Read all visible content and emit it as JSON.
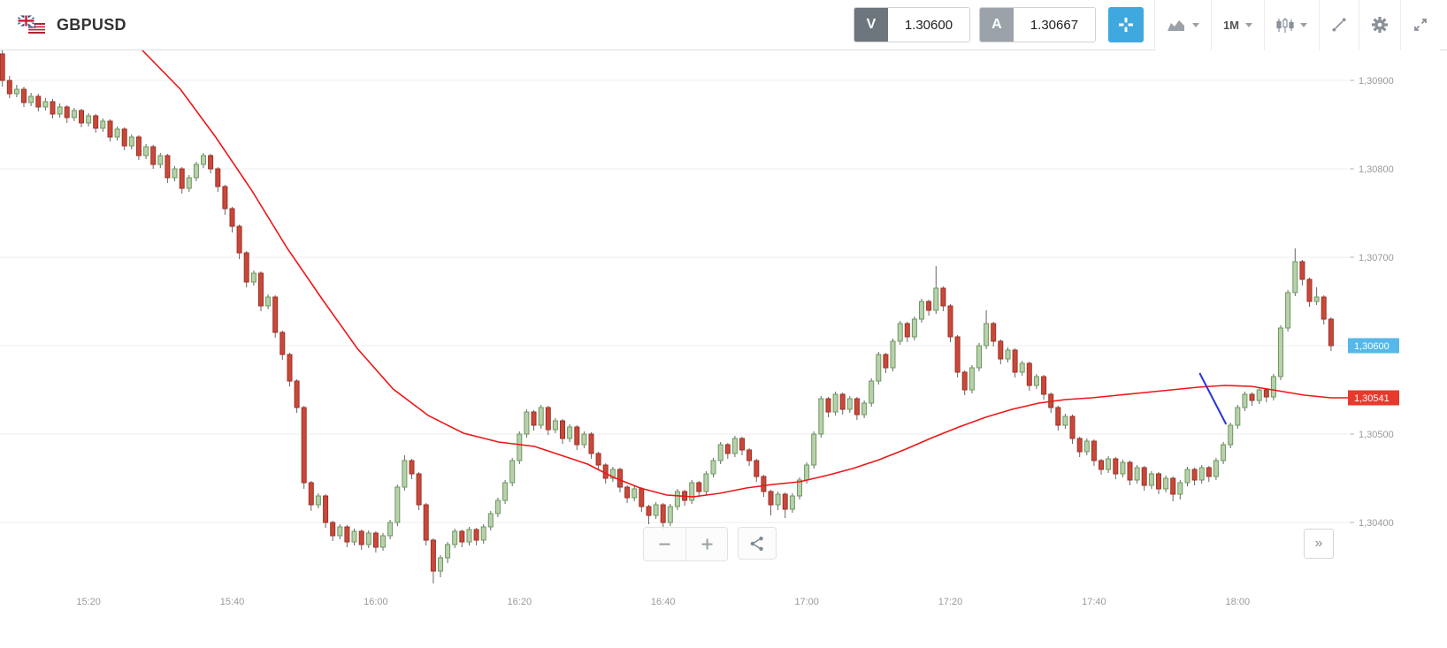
{
  "header": {
    "symbol": "GBPUSD",
    "sell": {
      "label": "V",
      "value": "1.30600"
    },
    "buy": {
      "label": "A",
      "value": "1.30667"
    },
    "timeframe": "1M"
  },
  "controls": {
    "collapse_panel": "»"
  },
  "colors": {
    "accent_blue": "#3fa9df",
    "sell_box": "#6d757d",
    "buy_box": "#9ba2aa",
    "bull_fill": "#b9d0ae",
    "bull_stroke": "#6a9a5b",
    "bear_fill": "#c9483a",
    "bear_stroke": "#9c3227",
    "wick": "#666666",
    "ma_line": "#ef1515",
    "trend_line": "#2b35d8",
    "grid": "#ececec",
    "axis_text": "#999999",
    "tag_current_bg": "#56b8e8",
    "tag_ma_bg": "#e8392d"
  },
  "chart_data": {
    "type": "candlestick",
    "symbol": "GBPUSD",
    "interval": "1M",
    "start_time": "15:08",
    "minutes_per_candle": 1,
    "price_base": 1.3,
    "price_unit": 1e-05,
    "visible_price_range": [
      1.3033,
      1.3094
    ],
    "grid_prices": [
      900,
      800,
      700,
      600,
      500,
      400
    ],
    "axis_labels": [
      {
        "price": 900,
        "label": "1,30900"
      },
      {
        "price": 800,
        "label": "1,30800"
      },
      {
        "price": 700,
        "label": "1,30700"
      },
      {
        "price": 600,
        "label": "1,30600"
      },
      {
        "price": 500,
        "label": "1,30500"
      },
      {
        "price": 400,
        "label": "1,30400"
      }
    ],
    "time_ticks": [
      {
        "index": 12,
        "label": "15:20"
      },
      {
        "index": 32,
        "label": "15:40"
      },
      {
        "index": 52,
        "label": "16:00"
      },
      {
        "index": 72,
        "label": "16:20"
      },
      {
        "index": 92,
        "label": "16:40"
      },
      {
        "index": 112,
        "label": "17:00"
      },
      {
        "index": 132,
        "label": "17:20"
      },
      {
        "index": 152,
        "label": "17:40"
      },
      {
        "index": 172,
        "label": "18:00"
      }
    ],
    "current_price_tag": {
      "price": 600,
      "label": "1,30600"
    },
    "ma_value_tag": {
      "price": 541,
      "label": "1,30541"
    },
    "ohlc": [
      [
        930,
        936,
        893,
        900
      ],
      [
        900,
        905,
        880,
        885
      ],
      [
        885,
        895,
        881,
        890
      ],
      [
        890,
        893,
        870,
        875
      ],
      [
        875,
        886,
        871,
        882
      ],
      [
        882,
        885,
        865,
        870
      ],
      [
        870,
        880,
        866,
        876
      ],
      [
        876,
        879,
        857,
        862
      ],
      [
        862,
        874,
        858,
        870
      ],
      [
        870,
        872,
        852,
        858
      ],
      [
        858,
        869,
        854,
        866
      ],
      [
        866,
        868,
        847,
        852
      ],
      [
        852,
        863,
        848,
        860
      ],
      [
        860,
        862,
        841,
        846
      ],
      [
        846,
        857,
        842,
        854
      ],
      [
        854,
        856,
        831,
        836
      ],
      [
        836,
        848,
        832,
        845
      ],
      [
        845,
        847,
        821,
        826
      ],
      [
        826,
        839,
        822,
        836
      ],
      [
        836,
        838,
        810,
        815
      ],
      [
        815,
        828,
        811,
        825
      ],
      [
        825,
        827,
        800,
        805
      ],
      [
        805,
        818,
        801,
        815
      ],
      [
        815,
        817,
        784,
        790
      ],
      [
        790,
        803,
        786,
        800
      ],
      [
        800,
        802,
        772,
        778
      ],
      [
        778,
        793,
        774,
        790
      ],
      [
        790,
        808,
        786,
        805
      ],
      [
        805,
        818,
        801,
        815
      ],
      [
        815,
        817,
        795,
        800
      ],
      [
        800,
        802,
        774,
        780
      ],
      [
        780,
        782,
        748,
        755
      ],
      [
        755,
        757,
        728,
        735
      ],
      [
        735,
        737,
        698,
        705
      ],
      [
        705,
        707,
        666,
        672
      ],
      [
        672,
        685,
        668,
        682
      ],
      [
        682,
        684,
        639,
        645
      ],
      [
        645,
        658,
        641,
        655
      ],
      [
        655,
        657,
        609,
        615
      ],
      [
        615,
        617,
        584,
        590
      ],
      [
        590,
        592,
        554,
        560
      ],
      [
        560,
        562,
        524,
        530
      ],
      [
        530,
        532,
        438,
        445
      ],
      [
        445,
        447,
        413,
        420
      ],
      [
        420,
        433,
        416,
        430
      ],
      [
        430,
        432,
        394,
        400
      ],
      [
        400,
        402,
        379,
        385
      ],
      [
        385,
        398,
        381,
        395
      ],
      [
        395,
        397,
        372,
        378
      ],
      [
        378,
        393,
        374,
        390
      ],
      [
        390,
        392,
        369,
        375
      ],
      [
        375,
        391,
        371,
        388
      ],
      [
        388,
        390,
        366,
        372
      ],
      [
        372,
        388,
        368,
        385
      ],
      [
        385,
        403,
        381,
        400
      ],
      [
        400,
        443,
        396,
        440
      ],
      [
        440,
        476,
        436,
        470
      ],
      [
        470,
        472,
        449,
        455
      ],
      [
        455,
        457,
        414,
        420
      ],
      [
        420,
        422,
        374,
        380
      ],
      [
        380,
        382,
        331,
        345
      ],
      [
        345,
        363,
        338,
        360
      ],
      [
        360,
        378,
        354,
        375
      ],
      [
        375,
        393,
        371,
        390
      ],
      [
        390,
        392,
        372,
        378
      ],
      [
        378,
        395,
        374,
        392
      ],
      [
        392,
        394,
        374,
        380
      ],
      [
        380,
        398,
        376,
        395
      ],
      [
        395,
        413,
        391,
        410
      ],
      [
        410,
        428,
        406,
        425
      ],
      [
        425,
        448,
        421,
        445
      ],
      [
        445,
        473,
        441,
        470
      ],
      [
        470,
        503,
        466,
        500
      ],
      [
        500,
        528,
        496,
        525
      ],
      [
        525,
        527,
        504,
        510
      ],
      [
        510,
        533,
        506,
        530
      ],
      [
        530,
        532,
        499,
        505
      ],
      [
        505,
        518,
        501,
        515
      ],
      [
        515,
        517,
        489,
        495
      ],
      [
        495,
        511,
        491,
        508
      ],
      [
        508,
        510,
        482,
        488
      ],
      [
        488,
        503,
        484,
        500
      ],
      [
        500,
        502,
        472,
        478
      ],
      [
        478,
        480,
        459,
        465
      ],
      [
        465,
        467,
        444,
        450
      ],
      [
        450,
        463,
        446,
        460
      ],
      [
        460,
        462,
        434,
        440
      ],
      [
        440,
        442,
        422,
        428
      ],
      [
        428,
        441,
        424,
        438
      ],
      [
        438,
        440,
        412,
        418
      ],
      [
        418,
        420,
        398,
        408
      ],
      [
        408,
        423,
        404,
        420
      ],
      [
        420,
        422,
        392,
        400
      ],
      [
        400,
        421,
        396,
        418
      ],
      [
        418,
        438,
        414,
        435
      ],
      [
        435,
        437,
        419,
        425
      ],
      [
        425,
        448,
        421,
        445
      ],
      [
        445,
        447,
        429,
        435
      ],
      [
        435,
        458,
        431,
        455
      ],
      [
        455,
        473,
        451,
        470
      ],
      [
        470,
        491,
        466,
        488
      ],
      [
        488,
        490,
        472,
        478
      ],
      [
        478,
        498,
        474,
        495
      ],
      [
        495,
        497,
        476,
        482
      ],
      [
        482,
        484,
        464,
        470
      ],
      [
        470,
        472,
        446,
        452
      ],
      [
        452,
        454,
        429,
        435
      ],
      [
        435,
        437,
        408,
        420
      ],
      [
        420,
        435,
        414,
        432
      ],
      [
        432,
        434,
        405,
        415
      ],
      [
        415,
        433,
        411,
        430
      ],
      [
        430,
        451,
        426,
        448
      ],
      [
        448,
        468,
        444,
        465
      ],
      [
        465,
        503,
        461,
        500
      ],
      [
        500,
        543,
        496,
        540
      ],
      [
        540,
        542,
        519,
        525
      ],
      [
        525,
        548,
        521,
        545
      ],
      [
        545,
        547,
        522,
        528
      ],
      [
        528,
        543,
        524,
        540
      ],
      [
        540,
        542,
        516,
        522
      ],
      [
        522,
        538,
        518,
        535
      ],
      [
        535,
        563,
        531,
        560
      ],
      [
        560,
        593,
        556,
        590
      ],
      [
        590,
        592,
        569,
        575
      ],
      [
        575,
        608,
        571,
        605
      ],
      [
        605,
        628,
        601,
        625
      ],
      [
        625,
        627,
        604,
        610
      ],
      [
        610,
        633,
        606,
        630
      ],
      [
        630,
        653,
        626,
        650
      ],
      [
        650,
        652,
        634,
        640
      ],
      [
        640,
        690,
        636,
        665
      ],
      [
        665,
        667,
        639,
        645
      ],
      [
        645,
        647,
        604,
        610
      ],
      [
        610,
        612,
        564,
        570
      ],
      [
        570,
        572,
        544,
        550
      ],
      [
        550,
        578,
        546,
        575
      ],
      [
        575,
        603,
        571,
        600
      ],
      [
        600,
        640,
        596,
        625
      ],
      [
        625,
        627,
        599,
        605
      ],
      [
        605,
        607,
        579,
        585
      ],
      [
        585,
        598,
        581,
        595
      ],
      [
        595,
        597,
        564,
        570
      ],
      [
        570,
        583,
        566,
        580
      ],
      [
        580,
        582,
        549,
        555
      ],
      [
        555,
        568,
        551,
        565
      ],
      [
        565,
        567,
        539,
        545
      ],
      [
        545,
        547,
        524,
        530
      ],
      [
        530,
        532,
        504,
        510
      ],
      [
        510,
        523,
        506,
        520
      ],
      [
        520,
        522,
        489,
        495
      ],
      [
        495,
        497,
        474,
        480
      ],
      [
        480,
        495,
        476,
        492
      ],
      [
        492,
        494,
        464,
        470
      ],
      [
        470,
        472,
        454,
        460
      ],
      [
        460,
        475,
        456,
        472
      ],
      [
        472,
        474,
        449,
        455
      ],
      [
        455,
        471,
        451,
        468
      ],
      [
        468,
        470,
        442,
        448
      ],
      [
        448,
        465,
        444,
        462
      ],
      [
        462,
        464,
        436,
        442
      ],
      [
        442,
        458,
        438,
        455
      ],
      [
        455,
        457,
        432,
        438
      ],
      [
        438,
        453,
        434,
        450
      ],
      [
        450,
        452,
        424,
        432
      ],
      [
        432,
        448,
        426,
        445
      ],
      [
        445,
        463,
        441,
        460
      ],
      [
        460,
        462,
        442,
        448
      ],
      [
        448,
        465,
        444,
        462
      ],
      [
        462,
        464,
        446,
        452
      ],
      [
        452,
        473,
        448,
        470
      ],
      [
        470,
        491,
        466,
        488
      ],
      [
        488,
        513,
        484,
        510
      ],
      [
        510,
        533,
        506,
        530
      ],
      [
        530,
        548,
        526,
        545
      ],
      [
        545,
        547,
        532,
        538
      ],
      [
        538,
        553,
        534,
        550
      ],
      [
        550,
        552,
        536,
        542
      ],
      [
        542,
        568,
        538,
        565
      ],
      [
        565,
        623,
        561,
        620
      ],
      [
        620,
        663,
        616,
        660
      ],
      [
        660,
        710,
        656,
        695
      ],
      [
        695,
        697,
        668,
        675
      ],
      [
        675,
        677,
        644,
        650
      ],
      [
        650,
        666,
        646,
        655
      ],
      [
        655,
        657,
        624,
        630
      ],
      [
        630,
        632,
        594,
        600
      ]
    ],
    "ma_line": [
      [
        19.5,
        934
      ],
      [
        24.8,
        890
      ],
      [
        29.7,
        836
      ],
      [
        34.7,
        776
      ],
      [
        39.6,
        711
      ],
      [
        44.5,
        653
      ],
      [
        49.4,
        597
      ],
      [
        54.4,
        551
      ],
      [
        59.3,
        521
      ],
      [
        64.2,
        501
      ],
      [
        69.1,
        491
      ],
      [
        74.1,
        486
      ],
      [
        77.8,
        476
      ],
      [
        81.5,
        466
      ],
      [
        85.1,
        451
      ],
      [
        88.8,
        439
      ],
      [
        92.5,
        431
      ],
      [
        96.2,
        429
      ],
      [
        99.9,
        433
      ],
      [
        103.6,
        439
      ],
      [
        107.3,
        443
      ],
      [
        111,
        446
      ],
      [
        114.7,
        453
      ],
      [
        118.4,
        461
      ],
      [
        122.1,
        471
      ],
      [
        125.8,
        483
      ],
      [
        129.5,
        496
      ],
      [
        133.2,
        508
      ],
      [
        136.9,
        519
      ],
      [
        140.6,
        528
      ],
      [
        144.3,
        535
      ],
      [
        148,
        539
      ],
      [
        151.7,
        541
      ],
      [
        155.4,
        544
      ],
      [
        159.1,
        547
      ],
      [
        162.8,
        550
      ],
      [
        166.5,
        553
      ],
      [
        170.2,
        555
      ],
      [
        173.9,
        554
      ],
      [
        177.6,
        549
      ],
      [
        181.3,
        544
      ],
      [
        185,
        541
      ],
      [
        187.6,
        541
      ]
    ],
    "trendline": {
      "from": [
        166.7,
        569
      ],
      "to": [
        170.4,
        511
      ]
    }
  }
}
